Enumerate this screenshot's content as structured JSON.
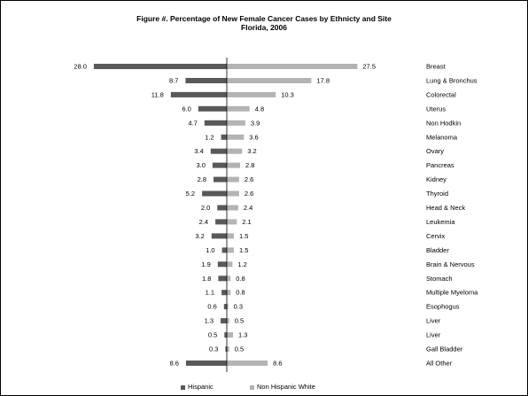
{
  "title_line1": "Figure #. Percentage of New Female Cancer Cases by Ethnicty and Site",
  "title_line2": "Florida, 2006",
  "colors": {
    "hispanic": "#595959",
    "non_hispanic_white": "#b3b3b3",
    "axis": "#000000"
  },
  "chart_data": {
    "type": "bar",
    "orientation": "horizontal-diverging",
    "title": "Figure #. Percentage of New Female Cancer Cases by Ethnicty and Site Florida, 2006",
    "categories": [
      "Breast",
      "Lung & Bronchus",
      "Colorectal",
      "Uterus",
      "Non Hodkin",
      "Melanoma",
      "Ovary",
      "Pancreas",
      "Kidney",
      "Thyroid",
      "Head & Neck",
      "Leukemia",
      "Cervix",
      "Bladder",
      "Brain & Nervous",
      "Stomach",
      "Multiple Myeloma",
      "Esophogus",
      "Liver",
      "Liver",
      "Gall Bladder",
      "All Other"
    ],
    "series": [
      {
        "name": "Hispanic",
        "side": "left",
        "values": [
          28.0,
          8.7,
          11.8,
          6.0,
          4.7,
          1.2,
          3.4,
          3.0,
          2.8,
          5.2,
          2.0,
          2.4,
          3.2,
          1.0,
          1.9,
          1.8,
          1.1,
          0.6,
          1.3,
          0.5,
          0.3,
          8.6
        ],
        "labels": [
          "28.0",
          "8.7",
          "11.8",
          "6.0",
          "4.7",
          "1.2",
          "3.4",
          "3.0",
          "2.8",
          "5.2",
          "2.0",
          "2.4",
          "3.2",
          "1.0",
          "1.9",
          "1.8",
          "1.1",
          "0.6",
          "1.3",
          "0.5",
          "0.3",
          "8.6"
        ]
      },
      {
        "name": "Non Hispanic White",
        "side": "right",
        "values": [
          27.5,
          17.8,
          10.3,
          4.8,
          3.9,
          3.6,
          3.2,
          2.8,
          2.6,
          2.6,
          2.4,
          2.1,
          1.5,
          1.5,
          1.2,
          0.8,
          0.8,
          0.3,
          0.5,
          1.3,
          0.5,
          8.6
        ],
        "labels": [
          "27.5",
          "17.8",
          "10.3",
          "4.8",
          "3.9",
          "3.6",
          "3.2",
          "2.8",
          "2.6",
          "2.6",
          "2.4",
          "2.1",
          "1.5",
          "1.5",
          "1.2",
          "0.8",
          "0.8",
          "0.3",
          "0.5",
          "1.3",
          "0.5",
          "8.6"
        ]
      }
    ],
    "legend_position": "bottom",
    "grid": false
  },
  "legend": {
    "hispanic": "Hispanic",
    "non_hispanic_white": "Non Hispanic White"
  }
}
